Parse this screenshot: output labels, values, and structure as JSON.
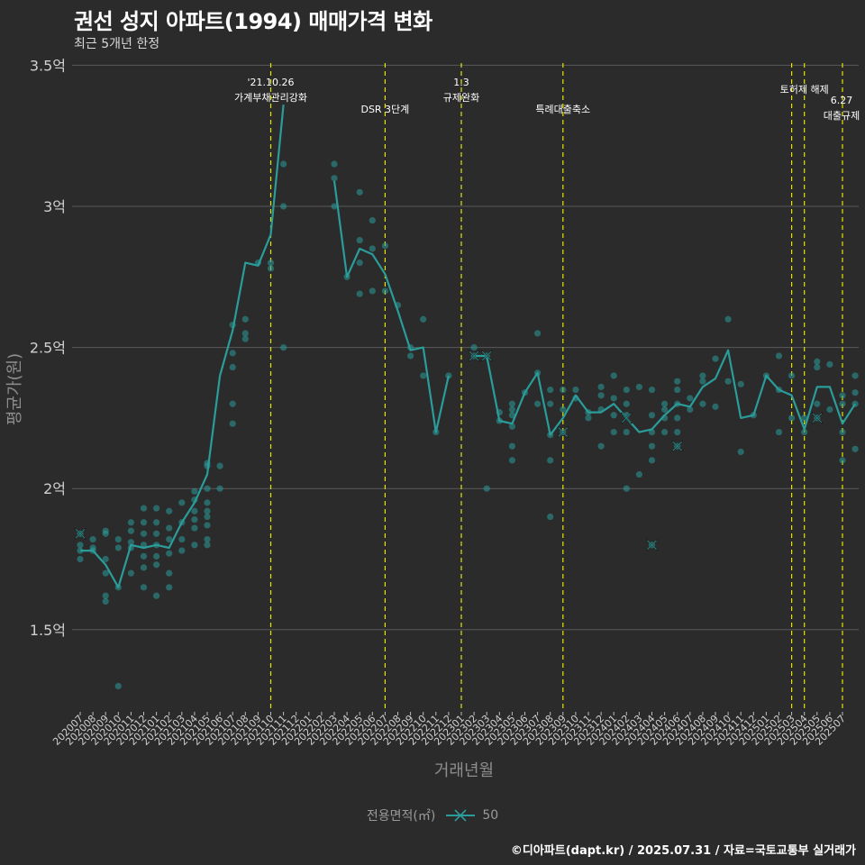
{
  "header": {
    "title": "권선 성지 아파트(1994) 매매가격 변화",
    "subtitle": "최근 5개년 한정"
  },
  "legend": {
    "title": "전용면적(㎡)",
    "item": "50"
  },
  "caption": "©디아파트(dapt.kr) / 2025.07.31 / 자료=국토교통부 실거래가",
  "colors": {
    "background": "#2b2b2c",
    "series": "#2a9d9a",
    "event_line": "#e5e500",
    "grid": "#5a5a5a"
  },
  "chart_data": {
    "type": "line",
    "xlabel": "거래년월",
    "ylabel": "평균가(원)",
    "ylim": [
      1.2,
      3.5
    ],
    "y_ticks": [
      {
        "v": 1.5,
        "label": "1.5억"
      },
      {
        "v": 2.0,
        "label": "2억"
      },
      {
        "v": 2.5,
        "label": "2.5억"
      },
      {
        "v": 3.0,
        "label": "3억"
      },
      {
        "v": 3.5,
        "label": "3.5억"
      }
    ],
    "categories": [
      "202007",
      "202008",
      "202009",
      "202010",
      "202011",
      "202012",
      "202101",
      "202102",
      "202103",
      "202104",
      "202105",
      "202106",
      "202107",
      "202108",
      "202109",
      "202110",
      "202111",
      "202112",
      "202201",
      "202202",
      "202203",
      "202204",
      "202205",
      "202206",
      "202207",
      "202208",
      "202209",
      "202210",
      "202211",
      "202212",
      "202301",
      "202302",
      "202303",
      "202304",
      "202305",
      "202306",
      "202307",
      "202308",
      "202309",
      "202310",
      "202311",
      "202312",
      "202401",
      "202402",
      "202403",
      "202404",
      "202405",
      "202406",
      "202407",
      "202408",
      "202409",
      "202410",
      "202411",
      "202412",
      "202501",
      "202502",
      "202503",
      "202504",
      "202505",
      "202506",
      "202507"
    ],
    "series": [
      {
        "name": "50",
        "avg_segments": [
          [
            [
              0,
              1.78
            ],
            [
              1,
              1.78
            ],
            [
              2,
              1.73
            ],
            [
              3,
              1.65
            ],
            [
              4,
              1.8
            ],
            [
              5,
              1.79
            ],
            [
              6,
              1.8
            ],
            [
              7,
              1.79
            ],
            [
              8,
              1.88
            ],
            [
              9,
              1.95
            ],
            [
              10,
              2.05
            ],
            [
              11,
              2.4
            ],
            [
              12,
              2.56
            ],
            [
              13,
              2.8
            ],
            [
              14,
              2.79
            ],
            [
              15,
              2.9
            ],
            [
              16,
              3.36
            ]
          ],
          [
            [
              20,
              3.09
            ],
            [
              21,
              2.75
            ],
            [
              22,
              2.85
            ],
            [
              23,
              2.83
            ],
            [
              24,
              2.76
            ],
            [
              25,
              2.63
            ],
            [
              26,
              2.49
            ],
            [
              27,
              2.5
            ],
            [
              28,
              2.2
            ],
            [
              29,
              2.4
            ]
          ]
        ],
        "avg_segments_2": [
          [
            [
              31,
              2.47
            ],
            [
              32,
              2.47
            ],
            [
              33,
              2.24
            ],
            [
              34,
              2.23
            ],
            [
              35,
              2.34
            ],
            [
              36,
              2.41
            ],
            [
              37,
              2.19
            ],
            [
              38,
              2.25
            ],
            [
              39,
              2.33
            ],
            [
              40,
              2.27
            ],
            [
              41,
              2.27
            ],
            [
              42,
              2.3
            ],
            [
              43,
              2.25
            ],
            [
              44,
              2.2
            ],
            [
              45,
              2.21
            ],
            [
              46,
              2.26
            ],
            [
              47,
              2.3
            ],
            [
              48,
              2.29
            ],
            [
              49,
              2.36
            ],
            [
              50,
              2.39
            ],
            [
              51,
              2.49
            ],
            [
              52,
              2.25
            ],
            [
              53,
              2.26
            ],
            [
              54,
              2.4
            ],
            [
              55,
              2.35
            ],
            [
              56,
              2.33
            ],
            [
              57,
              2.21
            ],
            [
              58,
              2.36
            ],
            [
              59,
              2.36
            ],
            [
              60,
              2.23
            ],
            [
              61,
              2.3
            ]
          ]
        ],
        "points": [
          [
            0,
            1.84
          ],
          [
            0,
            1.8
          ],
          [
            0,
            1.78
          ],
          [
            0,
            1.75
          ],
          [
            1,
            1.82
          ],
          [
            1,
            1.79
          ],
          [
            1,
            1.78
          ],
          [
            2,
            1.85
          ],
          [
            2,
            1.84
          ],
          [
            2,
            1.75
          ],
          [
            2,
            1.7
          ],
          [
            2,
            1.62
          ],
          [
            2,
            1.6
          ],
          [
            3,
            1.82
          ],
          [
            3,
            1.79
          ],
          [
            3,
            1.65
          ],
          [
            3,
            1.3
          ],
          [
            4,
            1.88
          ],
          [
            4,
            1.85
          ],
          [
            4,
            1.81
          ],
          [
            4,
            1.79
          ],
          [
            4,
            1.7
          ],
          [
            5,
            1.93
          ],
          [
            5,
            1.88
          ],
          [
            5,
            1.84
          ],
          [
            5,
            1.8
          ],
          [
            5,
            1.76
          ],
          [
            5,
            1.72
          ],
          [
            5,
            1.65
          ],
          [
            6,
            1.93
          ],
          [
            6,
            1.88
          ],
          [
            6,
            1.84
          ],
          [
            6,
            1.8
          ],
          [
            6,
            1.76
          ],
          [
            6,
            1.73
          ],
          [
            6,
            1.62
          ],
          [
            7,
            1.92
          ],
          [
            7,
            1.86
          ],
          [
            7,
            1.82
          ],
          [
            7,
            1.77
          ],
          [
            7,
            1.7
          ],
          [
            7,
            1.65
          ],
          [
            8,
            1.95
          ],
          [
            8,
            1.88
          ],
          [
            8,
            1.82
          ],
          [
            8,
            1.78
          ],
          [
            9,
            1.99
          ],
          [
            9,
            1.96
          ],
          [
            9,
            1.92
          ],
          [
            9,
            1.89
          ],
          [
            9,
            1.86
          ],
          [
            9,
            1.8
          ],
          [
            10,
            2.09
          ],
          [
            10,
            2.08
          ],
          [
            10,
            2.0
          ],
          [
            10,
            1.95
          ],
          [
            10,
            1.92
          ],
          [
            10,
            1.9
          ],
          [
            10,
            1.87
          ],
          [
            10,
            1.82
          ],
          [
            10,
            1.8
          ],
          [
            11,
            2.08
          ],
          [
            11,
            2.0
          ],
          [
            12,
            2.58
          ],
          [
            12,
            2.48
          ],
          [
            12,
            2.43
          ],
          [
            12,
            2.3
          ],
          [
            12,
            2.23
          ],
          [
            13,
            2.6
          ],
          [
            13,
            2.55
          ],
          [
            13,
            2.53
          ],
          [
            14,
            2.8
          ],
          [
            15,
            2.8
          ],
          [
            15,
            2.78
          ],
          [
            16,
            3.15
          ],
          [
            16,
            3.0
          ],
          [
            16,
            2.5
          ],
          [
            20,
            3.15
          ],
          [
            20,
            3.1
          ],
          [
            20,
            3.0
          ],
          [
            21,
            2.75
          ],
          [
            22,
            3.05
          ],
          [
            22,
            2.88
          ],
          [
            22,
            2.8
          ],
          [
            22,
            2.69
          ],
          [
            23,
            2.95
          ],
          [
            23,
            2.85
          ],
          [
            23,
            2.7
          ],
          [
            24,
            2.86
          ],
          [
            24,
            2.7
          ],
          [
            25,
            2.65
          ],
          [
            26,
            2.5
          ],
          [
            26,
            2.47
          ],
          [
            27,
            2.6
          ],
          [
            27,
            2.4
          ],
          [
            28,
            2.2
          ],
          [
            29,
            2.4
          ],
          [
            31,
            2.5
          ],
          [
            31,
            2.47
          ],
          [
            32,
            2.47
          ],
          [
            32,
            2.0
          ],
          [
            33,
            2.27
          ],
          [
            33,
            2.24
          ],
          [
            34,
            2.3
          ],
          [
            34,
            2.28
          ],
          [
            34,
            2.26
          ],
          [
            34,
            2.22
          ],
          [
            34,
            2.15
          ],
          [
            34,
            2.1
          ],
          [
            35,
            2.34
          ],
          [
            36,
            2.55
          ],
          [
            36,
            2.41
          ],
          [
            36,
            2.3
          ],
          [
            37,
            2.35
          ],
          [
            37,
            2.3
          ],
          [
            37,
            2.19
          ],
          [
            37,
            2.1
          ],
          [
            37,
            1.9
          ],
          [
            38,
            2.35
          ],
          [
            38,
            2.28
          ],
          [
            38,
            2.2
          ],
          [
            39,
            2.35
          ],
          [
            39,
            2.32
          ],
          [
            40,
            2.27
          ],
          [
            40,
            2.25
          ],
          [
            41,
            2.36
          ],
          [
            41,
            2.33
          ],
          [
            41,
            2.28
          ],
          [
            41,
            2.15
          ],
          [
            42,
            2.4
          ],
          [
            42,
            2.32
          ],
          [
            42,
            2.26
          ],
          [
            42,
            2.2
          ],
          [
            43,
            2.35
          ],
          [
            43,
            2.3
          ],
          [
            43,
            2.26
          ],
          [
            43,
            2.2
          ],
          [
            43,
            2.0
          ],
          [
            44,
            2.36
          ],
          [
            44,
            2.05
          ],
          [
            45,
            2.35
          ],
          [
            45,
            2.26
          ],
          [
            45,
            2.2
          ],
          [
            45,
            2.15
          ],
          [
            45,
            2.1
          ],
          [
            45,
            1.8
          ],
          [
            46,
            2.3
          ],
          [
            46,
            2.28
          ],
          [
            46,
            2.25
          ],
          [
            46,
            2.2
          ],
          [
            47,
            2.38
          ],
          [
            47,
            2.35
          ],
          [
            47,
            2.3
          ],
          [
            47,
            2.25
          ],
          [
            47,
            2.2
          ],
          [
            47,
            2.15
          ],
          [
            48,
            2.32
          ],
          [
            48,
            2.28
          ],
          [
            49,
            2.4
          ],
          [
            49,
            2.38
          ],
          [
            49,
            2.3
          ],
          [
            50,
            2.46
          ],
          [
            50,
            2.29
          ],
          [
            51,
            2.6
          ],
          [
            51,
            2.38
          ],
          [
            52,
            2.37
          ],
          [
            52,
            2.13
          ],
          [
            53,
            2.26
          ],
          [
            54,
            2.4
          ],
          [
            55,
            2.47
          ],
          [
            55,
            2.35
          ],
          [
            55,
            2.2
          ],
          [
            56,
            2.4
          ],
          [
            56,
            2.25
          ],
          [
            57,
            2.25
          ],
          [
            57,
            2.2
          ],
          [
            58,
            2.45
          ],
          [
            58,
            2.43
          ],
          [
            58,
            2.3
          ],
          [
            58,
            2.25
          ],
          [
            59,
            2.44
          ],
          [
            59,
            2.28
          ],
          [
            60,
            2.33
          ],
          [
            60,
            2.3
          ],
          [
            60,
            2.2
          ],
          [
            60,
            2.1
          ],
          [
            61,
            2.4
          ],
          [
            61,
            2.34
          ],
          [
            61,
            2.3
          ],
          [
            61,
            2.14
          ]
        ],
        "x_markers": [
          [
            0,
            1.84
          ],
          [
            31,
            2.47
          ],
          [
            32,
            2.47
          ],
          [
            38,
            2.2
          ],
          [
            43,
            2.25
          ],
          [
            45,
            1.8
          ],
          [
            47,
            2.15
          ],
          [
            58,
            2.25
          ]
        ]
      }
    ],
    "events": [
      {
        "x": 15,
        "lines": [
          "'21.10.26",
          "가계부채관리강화"
        ],
        "row": 1
      },
      {
        "x": 24,
        "lines": [
          "DSR 3단계"
        ],
        "row": 3
      },
      {
        "x": 30,
        "lines": [
          "1.3",
          "규제완화"
        ],
        "row": 1
      },
      {
        "x": 38,
        "lines": [
          "특례대출축소"
        ],
        "row": 3
      },
      {
        "x": 56,
        "lines": [],
        "row": 0
      },
      {
        "x": 57,
        "lines": [
          "토허제 해제"
        ],
        "row": 2
      },
      {
        "x": 60,
        "lines": [
          "6.27",
          "대출규제"
        ],
        "row": 2.6
      }
    ]
  }
}
